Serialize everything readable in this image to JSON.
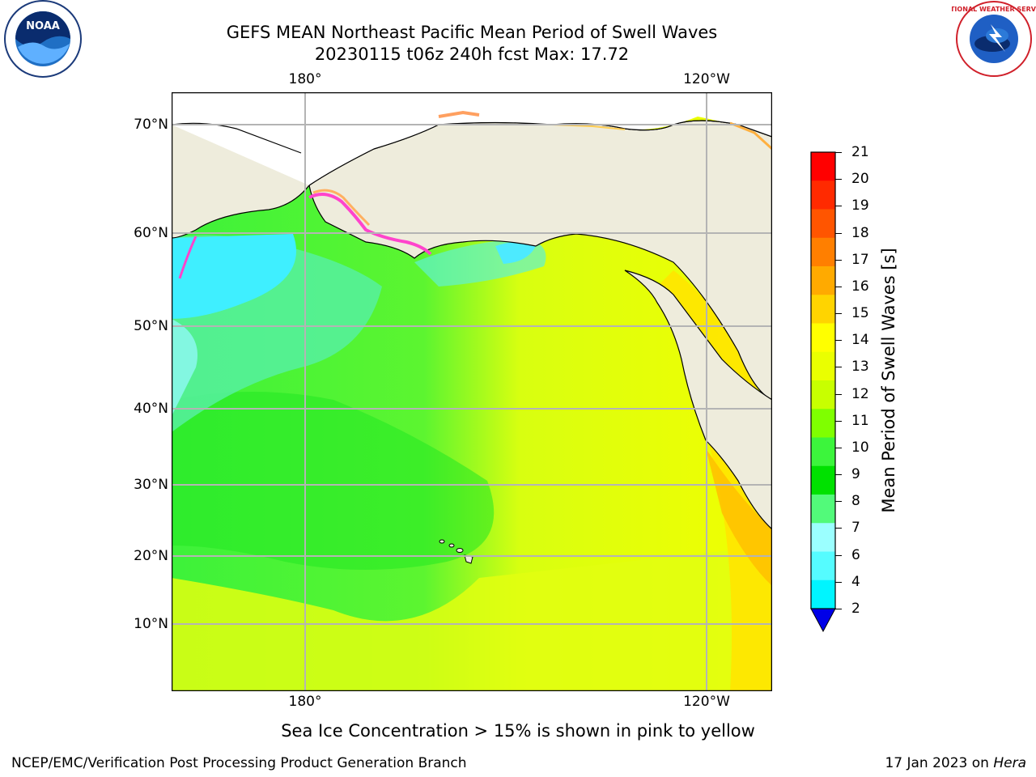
{
  "title_line1": "GEFS MEAN Northeast Pacific Mean Period of Swell Waves",
  "title_line2": "20230115 t06z 240h fcst   Max: 17.72",
  "lon_labels": [
    "180°",
    "120°W"
  ],
  "lat_labels": [
    "70°N",
    "60°N",
    "50°N",
    "40°N",
    "30°N",
    "20°N",
    "10°N"
  ],
  "colorbar": {
    "title": "Mean Period of Swell Waves [s]",
    "ticks": [
      "21",
      "20",
      "19",
      "18",
      "17",
      "16",
      "15",
      "14",
      "13",
      "12",
      "11",
      "10",
      "9",
      "8",
      "7",
      "6",
      "4",
      "2"
    ],
    "colors": [
      "#ff0000",
      "#ff2a00",
      "#ff5500",
      "#ff7f00",
      "#ffaa00",
      "#ffd400",
      "#ffff00",
      "#eaff00",
      "#c8ff00",
      "#7fff00",
      "#3cf53c",
      "#00e100",
      "#52fa7a",
      "#9bffff",
      "#55fcff",
      "#00f5ff",
      "#00c8ff",
      "#0050ff",
      "#0000e8"
    ]
  },
  "footer_note": "Sea Ice Concentration > 15% is shown in pink to yellow",
  "footer_left": "NCEP/EMC/Verification Post Processing Product Generation Branch",
  "footer_right_date": "17 Jan 2023 on ",
  "footer_right_machine": "Hera",
  "logos": {
    "noaa_text": "NOAA",
    "nws_text": "NATIONAL WEATHER SERVICE"
  }
}
